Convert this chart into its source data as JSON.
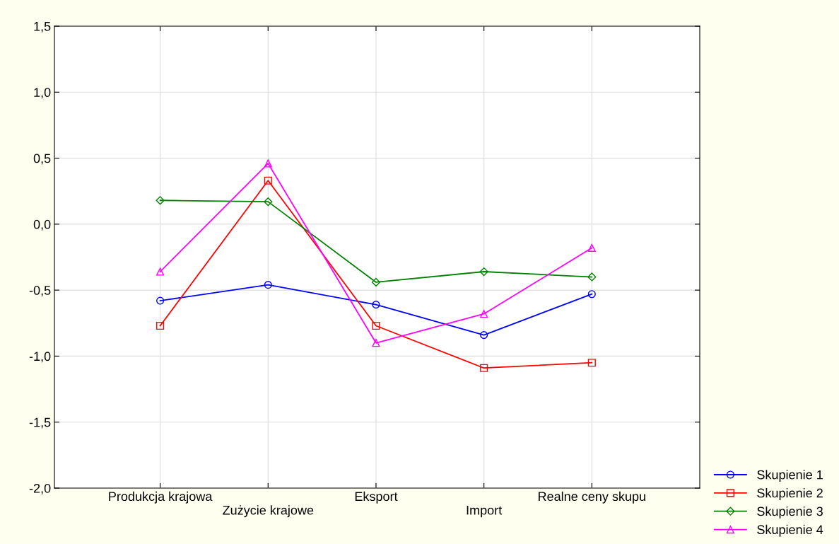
{
  "chart_data": {
    "type": "line",
    "categories": [
      "Produkcja krajowa",
      "Zużycie krajowe",
      "Eksport",
      "Import",
      "Realne ceny skupu"
    ],
    "series": [
      {
        "name": "Skupienie 1",
        "color": "#0000ff",
        "marker": "circle",
        "values": [
          -0.58,
          -0.46,
          -0.61,
          -0.84,
          -0.53
        ]
      },
      {
        "name": "Skupienie 2",
        "color": "#ff0000",
        "marker": "square",
        "values": [
          -0.77,
          0.33,
          -0.77,
          -1.09,
          -1.05
        ]
      },
      {
        "name": "Skupienie 3",
        "color": "#008000",
        "marker": "diamond",
        "values": [
          0.18,
          0.17,
          -0.44,
          -0.36,
          -0.4
        ]
      },
      {
        "name": "Skupienie 4",
        "color": "#ff00ff",
        "marker": "triangle",
        "values": [
          -0.36,
          0.46,
          -0.9,
          -0.68,
          -0.18
        ]
      }
    ],
    "ylim": [
      -2.0,
      1.5
    ],
    "yticks": [
      {
        "value": -2.0,
        "label": "-2,0"
      },
      {
        "value": -1.5,
        "label": "-1,5"
      },
      {
        "value": -1.0,
        "label": "-1,0"
      },
      {
        "value": -0.5,
        "label": "-0,5"
      },
      {
        "value": 0.0,
        "label": "0,0"
      },
      {
        "value": 0.5,
        "label": "0,5"
      },
      {
        "value": 1.0,
        "label": "1,0"
      },
      {
        "value": 1.5,
        "label": "1,5"
      }
    ],
    "grid": true,
    "legend": "bottom right",
    "line_style": "solid"
  }
}
